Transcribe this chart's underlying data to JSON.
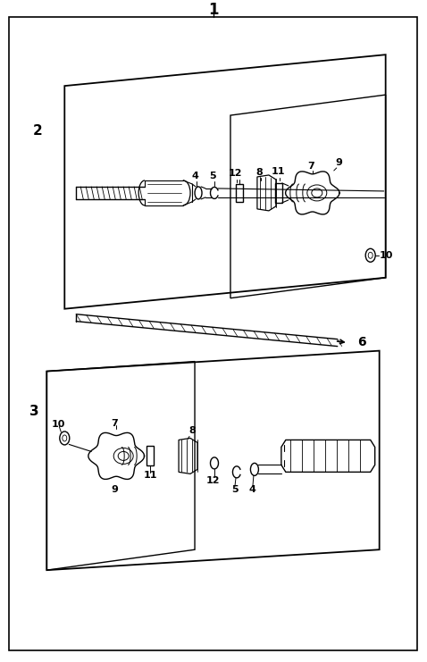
{
  "bg_color": "#ffffff",
  "line_color": "#000000",
  "fig_width": 4.78,
  "fig_height": 7.41,
  "dpi": 100,
  "labels": [
    "1",
    "2",
    "3",
    "4",
    "5",
    "6",
    "7",
    "8",
    "9",
    "10",
    "11",
    "12"
  ]
}
